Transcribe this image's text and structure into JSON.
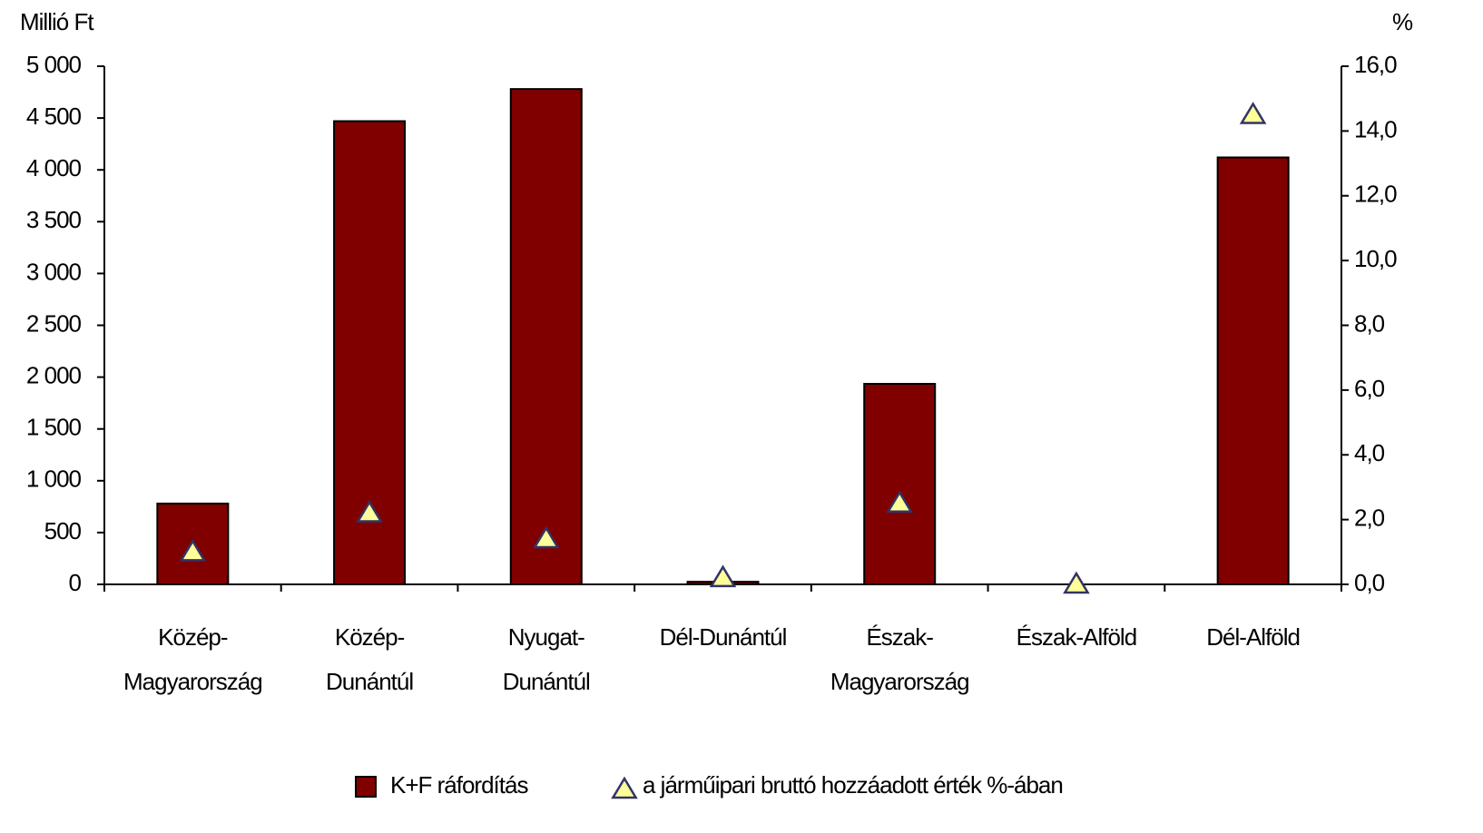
{
  "chart_data": {
    "type": "bar",
    "y_label": "Millió Ft",
    "y2_label": "%",
    "categories": [
      [
        "Közép-",
        "Magyarország"
      ],
      [
        "Közép-",
        "Dunántúl"
      ],
      [
        "Nyugat-",
        "Dunántúl"
      ],
      [
        "Dél-Dunántúl"
      ],
      [
        "Észak-",
        "Magyarország"
      ],
      [
        "Észak-Alföld"
      ],
      [
        "Dél-Alföld"
      ]
    ],
    "series": [
      {
        "name": "K+F ráfordítás",
        "type": "bar",
        "color": "#800000",
        "values": [
          780,
          4470,
          4780,
          25,
          1935,
          0,
          4120
        ]
      },
      {
        "name": "a járműipari bruttó hozzáadott érték %-ában",
        "type": "scatter",
        "color": "#ffff99",
        "axis": "y2",
        "values": [
          1.0,
          2.2,
          1.4,
          0.2,
          2.5,
          0.0,
          14.5
        ]
      }
    ],
    "ylim": [
      0,
      5000
    ],
    "yticks": [
      0,
      500,
      {
        "value": 1000,
        "label": "1 000"
      },
      {
        "value": 1500,
        "label": "1 500"
      },
      {
        "value": 2000,
        "label": "2 000"
      },
      {
        "value": 2500,
        "label": "2 500"
      },
      {
        "value": 3000,
        "label": "3 000"
      },
      {
        "value": 3500,
        "label": "3 500"
      },
      {
        "value": 4000,
        "label": "4 000"
      },
      {
        "value": 4500,
        "label": "4 500"
      },
      {
        "value": 5000,
        "label": "5 000"
      }
    ],
    "y2lim": [
      0,
      16
    ],
    "y2ticks": [
      {
        "value": 0,
        "label": "0,0"
      },
      {
        "value": 2,
        "label": "2,0"
      },
      {
        "value": 4,
        "label": "4,0"
      },
      {
        "value": 6,
        "label": "6,0"
      },
      {
        "value": 8,
        "label": "8,0"
      },
      {
        "value": 10,
        "label": "10,0"
      },
      {
        "value": 12,
        "label": "12,0"
      },
      {
        "value": 14,
        "label": "14,0"
      },
      {
        "value": 16,
        "label": "16,0"
      }
    ],
    "grid": false,
    "legend": "bottom"
  }
}
